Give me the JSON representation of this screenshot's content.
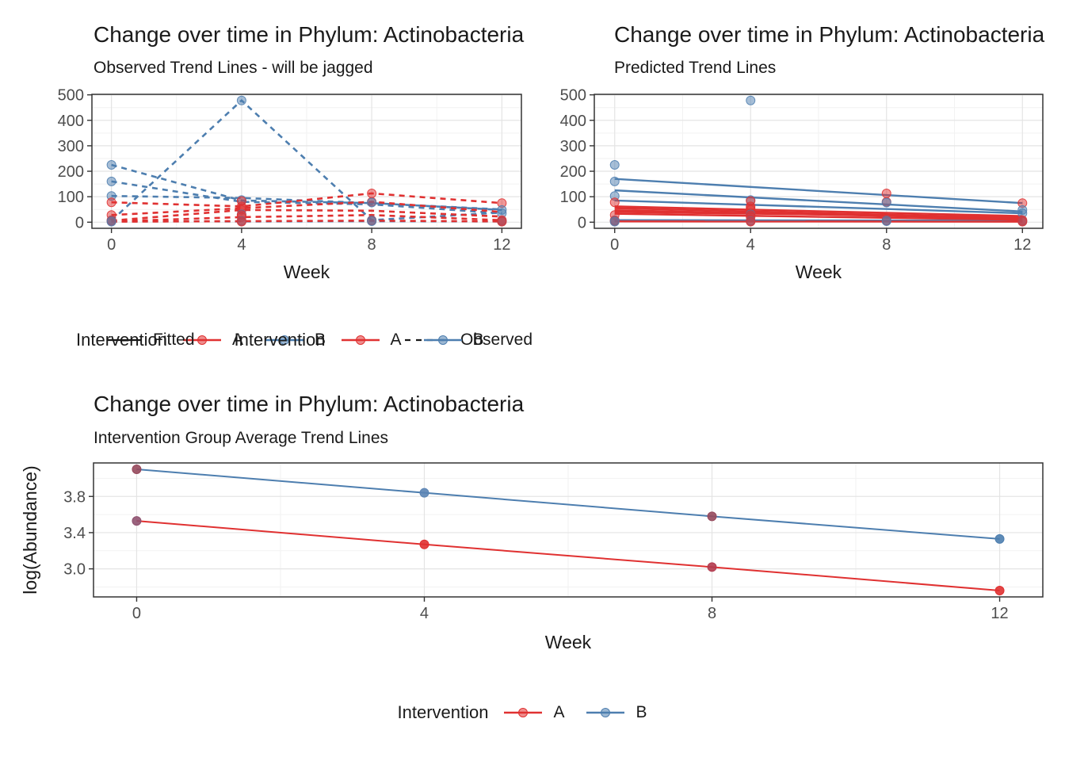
{
  "colors": {
    "red": "#e03131",
    "blue": "#4d7eaf",
    "text_dark": "#1a1a1a",
    "axis_text": "#4d4d4d",
    "panel_border": "#333333",
    "grid_major": "#e4e4e4",
    "grid_minor": "#f2f2f2",
    "background": "#ffffff"
  },
  "chart_data": [
    {
      "type": "line",
      "title": "Change over time in Phylum: Actinobacteria",
      "subtitle": "Observed Trend Lines - will be jagged",
      "xlabel": "Week",
      "ylabel": "",
      "x_domain": [
        -0.6,
        12.6
      ],
      "y_domain": [
        -24,
        502
      ],
      "x_ticks": [
        {
          "v": 0,
          "label": "0"
        },
        {
          "v": 4,
          "label": "4"
        },
        {
          "v": 8,
          "label": "8"
        },
        {
          "v": 12,
          "label": "12"
        }
      ],
      "y_ticks": [
        {
          "v": 0,
          "label": "0"
        },
        {
          "v": 100,
          "label": "100"
        },
        {
          "v": 200,
          "label": "200"
        },
        {
          "v": 300,
          "label": "300"
        },
        {
          "v": 400,
          "label": "400"
        },
        {
          "v": 500,
          "label": "500"
        }
      ],
      "x_minor": [
        2,
        6,
        10
      ],
      "y_minor": [
        50,
        150,
        250,
        350,
        450
      ],
      "grid": true,
      "group_colors": {
        "A": "#e03131",
        "B": "#4d7eaf"
      },
      "series": [
        {
          "name": "B-subj1",
          "group": "B",
          "color": "#4d7eaf",
          "linetype": "dashed",
          "width": 2.6,
          "x": [
            0,
            4,
            8,
            12
          ],
          "y": [
            225,
            85,
            75,
            48
          ]
        },
        {
          "name": "B-subj2",
          "group": "B",
          "color": "#4d7eaf",
          "linetype": "dashed",
          "width": 2.6,
          "x": [
            0,
            4,
            8,
            12
          ],
          "y": [
            6,
            478,
            8,
            38
          ]
        },
        {
          "name": "B-subj3",
          "group": "B",
          "color": "#4d7eaf",
          "linetype": "dashed",
          "width": 2.6,
          "x": [
            0,
            4,
            8,
            12
          ],
          "y": [
            160,
            80,
            70,
            35
          ]
        },
        {
          "name": "B-subj4",
          "group": "B",
          "color": "#4d7eaf",
          "linetype": "dashed",
          "width": 2.6,
          "x": [
            0,
            4,
            8,
            12
          ],
          "y": [
            103,
            95,
            75,
            50
          ]
        },
        {
          "name": "B-subj5",
          "group": "B",
          "color": "#4d7eaf",
          "linetype": "dashed",
          "width": 2.6,
          "x": [
            0,
            4,
            8,
            12
          ],
          "y": [
            4,
            3,
            4,
            3
          ]
        },
        {
          "name": "A-subj1",
          "group": "A",
          "color": "#e03131",
          "linetype": "dashed",
          "width": 2.6,
          "x": [
            0,
            4,
            8,
            12
          ],
          "y": [
            78,
            62,
            113,
            75
          ]
        },
        {
          "name": "A-subj2",
          "group": "A",
          "color": "#e03131",
          "linetype": "dashed",
          "width": 2.6,
          "x": [
            0,
            4,
            8,
            12
          ],
          "y": [
            28,
            55,
            80,
            40
          ]
        },
        {
          "name": "A-subj3",
          "group": "A",
          "color": "#e03131",
          "linetype": "dashed",
          "width": 2.6,
          "x": [
            0,
            4,
            8,
            12
          ],
          "y": [
            6,
            48,
            45,
            22
          ]
        },
        {
          "name": "A-subj4",
          "group": "A",
          "color": "#e03131",
          "linetype": "dashed",
          "width": 2.6,
          "x": [
            0,
            4,
            8,
            12
          ],
          "y": [
            3,
            20,
            28,
            8
          ]
        },
        {
          "name": "A-subj5",
          "group": "A",
          "color": "#e03131",
          "linetype": "dashed",
          "width": 2.6,
          "x": [
            0,
            4,
            8,
            12
          ],
          "y": [
            2,
            4,
            6,
            3
          ]
        }
      ],
      "points": [
        {
          "x": 0,
          "y": 225,
          "g": "B"
        },
        {
          "x": 0,
          "y": 160,
          "g": "B"
        },
        {
          "x": 0,
          "y": 103,
          "g": "B"
        },
        {
          "x": 0,
          "y": 78,
          "g": "A"
        },
        {
          "x": 0,
          "y": 28,
          "g": "A"
        },
        {
          "x": 0,
          "y": 8,
          "g": "A"
        },
        {
          "x": 0,
          "y": 6,
          "g": "B"
        },
        {
          "x": 0,
          "y": 4,
          "g": "A"
        },
        {
          "x": 0,
          "y": 2,
          "g": "B"
        },
        {
          "x": 4,
          "y": 478,
          "g": "B"
        },
        {
          "x": 4,
          "y": 87,
          "g": "B"
        },
        {
          "x": 4,
          "y": 83,
          "g": "A"
        },
        {
          "x": 4,
          "y": 62,
          "g": "A"
        },
        {
          "x": 4,
          "y": 55,
          "g": "A"
        },
        {
          "x": 4,
          "y": 48,
          "g": "A"
        },
        {
          "x": 4,
          "y": 31,
          "g": "B"
        },
        {
          "x": 4,
          "y": 28,
          "g": "A"
        },
        {
          "x": 4,
          "y": 20,
          "g": "A"
        },
        {
          "x": 4,
          "y": 6,
          "g": "A"
        },
        {
          "x": 4,
          "y": 4,
          "g": "B"
        },
        {
          "x": 4,
          "y": 2,
          "g": "A"
        },
        {
          "x": 8,
          "y": 113,
          "g": "A"
        },
        {
          "x": 8,
          "y": 80,
          "g": "A"
        },
        {
          "x": 8,
          "y": 77,
          "g": "B"
        },
        {
          "x": 8,
          "y": 8,
          "g": "B"
        },
        {
          "x": 8,
          "y": 6,
          "g": "A"
        },
        {
          "x": 8,
          "y": 4,
          "g": "B"
        },
        {
          "x": 12,
          "y": 75,
          "g": "A"
        },
        {
          "x": 12,
          "y": 48,
          "g": "B"
        },
        {
          "x": 12,
          "y": 35,
          "g": "B"
        },
        {
          "x": 12,
          "y": 8,
          "g": "A"
        },
        {
          "x": 12,
          "y": 5,
          "g": "A"
        },
        {
          "x": 12,
          "y": 3,
          "g": "B"
        },
        {
          "x": 12,
          "y": 2,
          "g": "A"
        }
      ],
      "legend": {
        "title": "Intervention",
        "items": [
          {
            "label": "A",
            "color": "#e03131",
            "marker": "line-dot"
          },
          {
            "label": "B",
            "color": "#4d7eaf",
            "marker": "line-dot"
          }
        ],
        "linetype": {
          "label": "Observed",
          "color": "#191919",
          "marker": "dashed-line"
        }
      }
    },
    {
      "type": "line",
      "title": "Change over time in Phylum: Actinobacteria",
      "subtitle": "Predicted Trend Lines",
      "xlabel": "Week",
      "ylabel": "",
      "x_domain": [
        -0.6,
        12.6
      ],
      "y_domain": [
        -24,
        502
      ],
      "x_ticks": [
        {
          "v": 0,
          "label": "0"
        },
        {
          "v": 4,
          "label": "4"
        },
        {
          "v": 8,
          "label": "8"
        },
        {
          "v": 12,
          "label": "12"
        }
      ],
      "y_ticks": [
        {
          "v": 0,
          "label": "0"
        },
        {
          "v": 100,
          "label": "100"
        },
        {
          "v": 200,
          "label": "200"
        },
        {
          "v": 300,
          "label": "300"
        },
        {
          "v": 400,
          "label": "400"
        },
        {
          "v": 500,
          "label": "500"
        }
      ],
      "x_minor": [
        2,
        6,
        10
      ],
      "y_minor": [
        50,
        150,
        250,
        350,
        450
      ],
      "grid": true,
      "group_colors": {
        "A": "#e03131",
        "B": "#4d7eaf"
      },
      "series": [
        {
          "name": "B-fit1",
          "group": "B",
          "color": "#4d7eaf",
          "linetype": "solid",
          "width": 2.4,
          "x": [
            0,
            12
          ],
          "y": [
            170,
            75
          ]
        },
        {
          "name": "B-fit2",
          "group": "B",
          "color": "#4d7eaf",
          "linetype": "solid",
          "width": 2.4,
          "x": [
            0,
            12
          ],
          "y": [
            125,
            42
          ]
        },
        {
          "name": "B-fit3",
          "group": "B",
          "color": "#4d7eaf",
          "linetype": "solid",
          "width": 2.4,
          "x": [
            0,
            12
          ],
          "y": [
            85,
            35
          ]
        },
        {
          "name": "B-fit4",
          "group": "B",
          "color": "#4d7eaf",
          "linetype": "solid",
          "width": 2.4,
          "x": [
            0,
            12
          ],
          "y": [
            8,
            6
          ]
        },
        {
          "name": "A-fit1",
          "group": "A",
          "color": "#e03131",
          "linetype": "solid",
          "width": 2.4,
          "x": [
            0,
            12
          ],
          "y": [
            62,
            24
          ]
        },
        {
          "name": "A-fit2",
          "group": "A",
          "color": "#e03131",
          "linetype": "solid",
          "width": 2.4,
          "x": [
            0,
            12
          ],
          "y": [
            55,
            17
          ]
        },
        {
          "name": "A-fit3",
          "group": "A",
          "color": "#e03131",
          "linetype": "solid",
          "width": 2.4,
          "x": [
            0,
            12
          ],
          "y": [
            47,
            13
          ]
        },
        {
          "name": "A-fit4",
          "group": "A",
          "color": "#e03131",
          "linetype": "solid",
          "width": 2.4,
          "x": [
            0,
            12
          ],
          "y": [
            40,
            20
          ]
        },
        {
          "name": "A-fit5",
          "group": "A",
          "color": "#e03131",
          "linetype": "solid",
          "width": 2.4,
          "x": [
            0,
            12
          ],
          "y": [
            33,
            9
          ]
        },
        {
          "name": "A-fit6",
          "group": "A",
          "color": "#e03131",
          "linetype": "solid",
          "width": 2.4,
          "x": [
            0,
            12
          ],
          "y": [
            3,
            2
          ]
        }
      ],
      "points": [
        {
          "x": 0,
          "y": 225,
          "g": "B"
        },
        {
          "x": 0,
          "y": 160,
          "g": "B"
        },
        {
          "x": 0,
          "y": 103,
          "g": "B"
        },
        {
          "x": 0,
          "y": 78,
          "g": "A"
        },
        {
          "x": 0,
          "y": 28,
          "g": "A"
        },
        {
          "x": 0,
          "y": 8,
          "g": "A"
        },
        {
          "x": 0,
          "y": 6,
          "g": "B"
        },
        {
          "x": 0,
          "y": 4,
          "g": "A"
        },
        {
          "x": 0,
          "y": 2,
          "g": "B"
        },
        {
          "x": 4,
          "y": 478,
          "g": "B"
        },
        {
          "x": 4,
          "y": 87,
          "g": "B"
        },
        {
          "x": 4,
          "y": 83,
          "g": "A"
        },
        {
          "x": 4,
          "y": 62,
          "g": "A"
        },
        {
          "x": 4,
          "y": 55,
          "g": "A"
        },
        {
          "x": 4,
          "y": 48,
          "g": "A"
        },
        {
          "x": 4,
          "y": 31,
          "g": "B"
        },
        {
          "x": 4,
          "y": 28,
          "g": "A"
        },
        {
          "x": 4,
          "y": 20,
          "g": "A"
        },
        {
          "x": 4,
          "y": 6,
          "g": "A"
        },
        {
          "x": 4,
          "y": 4,
          "g": "B"
        },
        {
          "x": 4,
          "y": 2,
          "g": "A"
        },
        {
          "x": 8,
          "y": 113,
          "g": "A"
        },
        {
          "x": 8,
          "y": 80,
          "g": "A"
        },
        {
          "x": 8,
          "y": 77,
          "g": "B"
        },
        {
          "x": 8,
          "y": 8,
          "g": "B"
        },
        {
          "x": 8,
          "y": 6,
          "g": "A"
        },
        {
          "x": 8,
          "y": 4,
          "g": "B"
        },
        {
          "x": 12,
          "y": 75,
          "g": "A"
        },
        {
          "x": 12,
          "y": 48,
          "g": "B"
        },
        {
          "x": 12,
          "y": 35,
          "g": "B"
        },
        {
          "x": 12,
          "y": 8,
          "g": "A"
        },
        {
          "x": 12,
          "y": 5,
          "g": "A"
        },
        {
          "x": 12,
          "y": 3,
          "g": "B"
        },
        {
          "x": 12,
          "y": 2,
          "g": "A"
        }
      ],
      "legend": {
        "title": "Intervention",
        "items": [
          {
            "label": "A",
            "color": "#e03131",
            "marker": "line-dot"
          },
          {
            "label": "B",
            "color": "#4d7eaf",
            "marker": "line-dot"
          }
        ],
        "linetype": {
          "label": "Fitted",
          "color": "#191919",
          "marker": "solid-line"
        }
      }
    },
    {
      "type": "line",
      "title": "Change over time in Phylum: Actinobacteria",
      "subtitle": "Intervention Group Average Trend Lines",
      "xlabel": "Week",
      "ylabel": "log(Abundance)",
      "x_domain": [
        -0.6,
        12.6
      ],
      "y_domain": [
        2.69,
        4.17
      ],
      "x_ticks": [
        {
          "v": 0,
          "label": "0"
        },
        {
          "v": 4,
          "label": "4"
        },
        {
          "v": 8,
          "label": "8"
        },
        {
          "v": 12,
          "label": "12"
        }
      ],
      "y_ticks": [
        {
          "v": 3.0,
          "label": "3.0"
        },
        {
          "v": 3.4,
          "label": "3.4"
        },
        {
          "v": 3.8,
          "label": "3.8"
        }
      ],
      "x_minor": [
        2,
        6,
        10
      ],
      "y_minor": [
        2.8,
        3.2,
        3.6,
        4.0
      ],
      "grid": true,
      "group_colors": {
        "A": "#e03131",
        "B": "#4d7eaf"
      },
      "series": [
        {
          "name": "B",
          "group": "B",
          "color": "#4d7eaf",
          "linetype": "solid",
          "width": 2,
          "x": [
            0,
            4,
            8,
            12
          ],
          "y": [
            4.1,
            3.84,
            3.58,
            3.33
          ],
          "show_points": true,
          "point_colors": [
            "#96495c",
            "#5b84b4",
            "#96495c",
            "#4d7eaf"
          ]
        },
        {
          "name": "A",
          "group": "A",
          "color": "#e03131",
          "linetype": "solid",
          "width": 2,
          "x": [
            0,
            4,
            8,
            12
          ],
          "y": [
            3.53,
            3.27,
            3.02,
            2.76
          ],
          "show_points": true,
          "point_colors": [
            "#8f5270",
            "#e03131",
            "#b23b4e",
            "#e03131"
          ]
        }
      ],
      "points": [],
      "legend": {
        "title": "Intervention",
        "items": [
          {
            "label": "A",
            "color": "#e03131",
            "marker": "line-dot"
          },
          {
            "label": "B",
            "color": "#4d7eaf",
            "marker": "line-dot"
          }
        ]
      }
    }
  ]
}
